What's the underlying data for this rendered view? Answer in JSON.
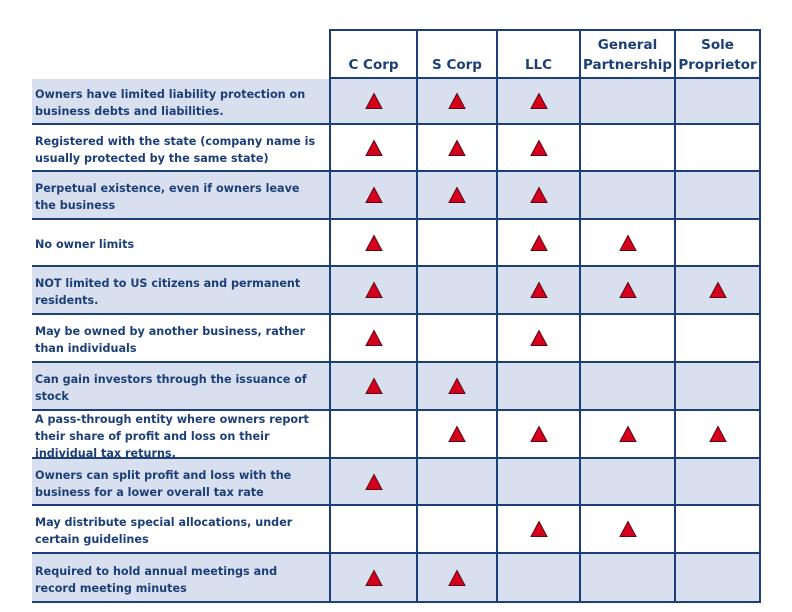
{
  "columns": [
    {
      "label_line1": "",
      "label_line2": "C Corp"
    },
    {
      "label_line1": "",
      "label_line2": "S Corp"
    },
    {
      "label_line1": "",
      "label_line2": "LLC"
    },
    {
      "label_line1": "General",
      "label_line2": "Partnership"
    },
    {
      "label_line1": "Sole",
      "label_line2": "Proprietor"
    }
  ],
  "marker_icon": "red-triangle-icon",
  "colors": {
    "accent": "#1d3f77",
    "row_shade": "#d8dfef",
    "marker_fill": "#d6001c"
  },
  "rows": [
    {
      "text": "Owners have limited liability protection on business debts and liabilities.",
      "marks": [
        true,
        true,
        true,
        false,
        false
      ]
    },
    {
      "text": "Registered with the state (company name is usually protected by the same state)",
      "marks": [
        true,
        true,
        true,
        false,
        false
      ]
    },
    {
      "text": "Perpetual existence, even if owners leave the business",
      "marks": [
        true,
        true,
        true,
        false,
        false
      ]
    },
    {
      "text": "No owner limits",
      "marks": [
        true,
        false,
        true,
        true,
        false
      ]
    },
    {
      "text": "NOT limited to US citizens and permanent residents.",
      "marks": [
        true,
        false,
        true,
        true,
        true
      ]
    },
    {
      "text": "May be owned by another business, rather than individuals",
      "marks": [
        true,
        false,
        true,
        false,
        false
      ]
    },
    {
      "text": "Can gain investors through the issuance of stock",
      "marks": [
        true,
        true,
        false,
        false,
        false
      ]
    },
    {
      "text": "A pass-through entity where owners report their share of profit and loss on their individual tax returns.",
      "marks": [
        false,
        true,
        true,
        true,
        true
      ]
    },
    {
      "text": "Owners can split profit and loss with the business for a lower overall tax rate",
      "marks": [
        true,
        false,
        false,
        false,
        false
      ]
    },
    {
      "text": "May distribute special allocations, under certain guidelines",
      "marks": [
        false,
        false,
        true,
        true,
        false
      ]
    },
    {
      "text": "Required to hold annual meetings and record meeting minutes",
      "marks": [
        true,
        true,
        false,
        false,
        false
      ]
    }
  ]
}
